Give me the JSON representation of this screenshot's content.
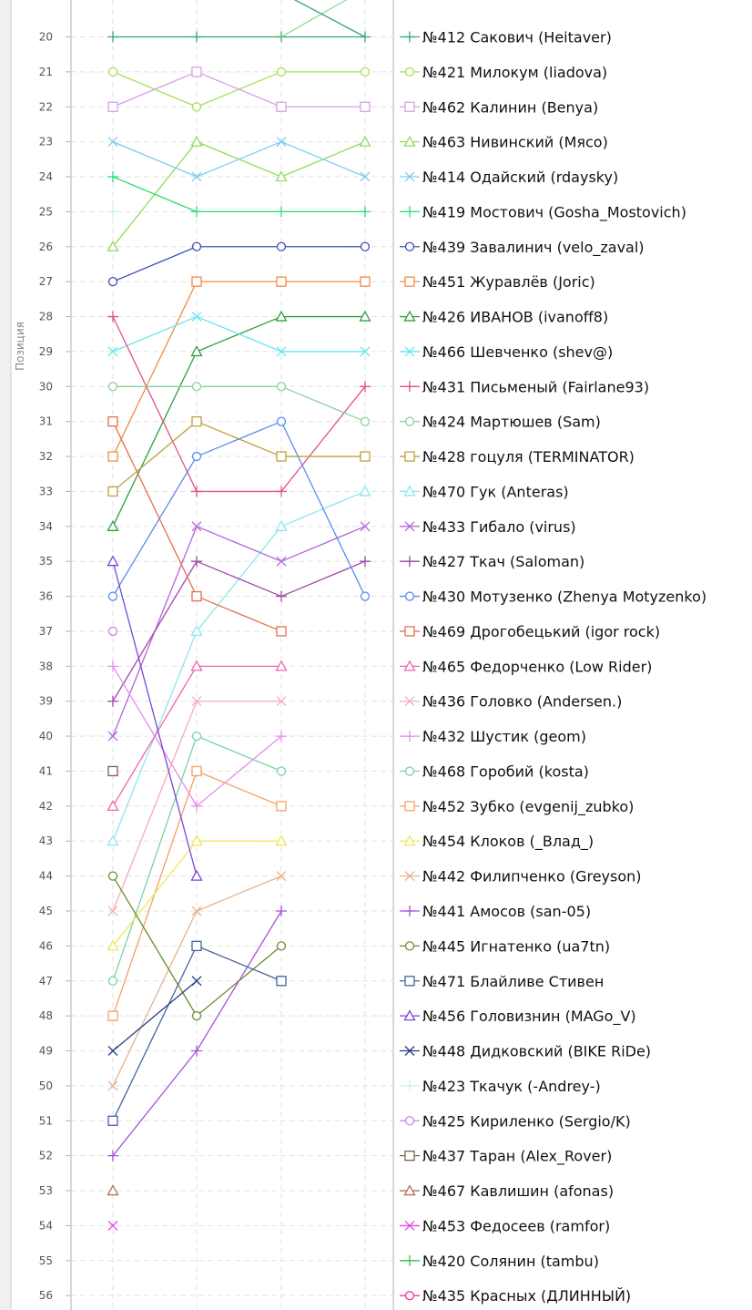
{
  "chart_data": {
    "type": "line",
    "ylabel": "Позиция",
    "ylim": [
      19,
      56
    ],
    "y_inverted": true,
    "y_ticks": [
      20,
      21,
      22,
      23,
      24,
      25,
      26,
      27,
      28,
      29,
      30,
      31,
      32,
      33,
      34,
      35,
      36,
      37,
      38,
      39,
      40,
      41,
      42,
      43,
      44,
      45,
      46,
      47,
      48,
      49,
      50,
      51,
      52,
      53,
      54,
      55,
      56
    ],
    "x_points": 4,
    "grid": true,
    "legend_position": "right",
    "series": [
      {
        "name": "№412 Сакович (Heitaver)",
        "color": "#3aa374",
        "marker": "plus",
        "values": [
          20,
          20,
          20,
          20
        ]
      },
      {
        "name": "№421 Милокум (liadova)",
        "color": "#a6e05a",
        "marker": "circle",
        "values": [
          21,
          22,
          21,
          21
        ]
      },
      {
        "name": "№462 Калинин (Benya)",
        "color": "#d9a0e6",
        "marker": "square",
        "values": [
          22,
          21,
          22,
          22
        ]
      },
      {
        "name": "№463 Нивинский (Мясо)",
        "color": "#8fdc5b",
        "marker": "triangle",
        "values": [
          26,
          23,
          24,
          23
        ]
      },
      {
        "name": "№414 Одайский (rdaysky)",
        "color": "#7fd0ee",
        "marker": "x",
        "values": [
          23,
          24,
          23,
          24
        ]
      },
      {
        "name": "№419 Мостович (Gosha_Mostovich)",
        "color": "#28dc6e",
        "marker": "plus",
        "values": [
          24,
          25,
          25,
          25
        ]
      },
      {
        "name": "№439 Завалинич (velo_zaval)",
        "color": "#3c50b4",
        "marker": "circle",
        "values": [
          27,
          26,
          26,
          26
        ]
      },
      {
        "name": "№451 Журавлёв (Joric)",
        "color": "#f08c46",
        "marker": "square",
        "values": [
          32,
          27,
          27,
          27
        ]
      },
      {
        "name": "№426 ИВАНОВ (ivanoff8)",
        "color": "#32a03c",
        "marker": "triangle",
        "values": [
          34,
          29,
          28,
          28
        ]
      },
      {
        "name": "№466 Шевченко (shev@)",
        "color": "#64e6f0",
        "marker": "x",
        "values": [
          29,
          28,
          29,
          29
        ]
      },
      {
        "name": "№431 Письменый (Fairlane93)",
        "color": "#e6508c",
        "marker": "plus",
        "values": [
          28,
          33,
          33,
          30
        ]
      },
      {
        "name": "№424 Мартюшев (Sam)",
        "color": "#8cd2a0",
        "marker": "circle",
        "values": [
          30,
          30,
          30,
          31
        ]
      },
      {
        "name": "№428 гоцуля (TERMINATOR)",
        "color": "#bea03c",
        "marker": "square",
        "values": [
          33,
          31,
          32,
          32
        ]
      },
      {
        "name": "№470 Гук (Anteras)",
        "color": "#8ce6f0",
        "marker": "triangle",
        "values": [
          43,
          37,
          34,
          33
        ]
      },
      {
        "name": "№433 Гибало (virus)",
        "color": "#b464dc",
        "marker": "x",
        "values": [
          40,
          34,
          35,
          34
        ]
      },
      {
        "name": "№427 Ткач (Saloman)",
        "color": "#a046aa",
        "marker": "plus",
        "values": [
          39,
          35,
          36,
          35
        ]
      },
      {
        "name": "№430 Мотузенко (Zhenya Motyzenko)",
        "color": "#5a8cf0",
        "marker": "circle",
        "values": [
          36,
          32,
          31,
          36
        ]
      },
      {
        "name": "№469 Дрогобецький (igor rock)",
        "color": "#e66e50",
        "marker": "square",
        "values": [
          31,
          36,
          37,
          null
        ]
      },
      {
        "name": "№465 Федорченко (Low Rider)",
        "color": "#f064aa",
        "marker": "triangle",
        "values": [
          42,
          38,
          38,
          null
        ]
      },
      {
        "name": "№436 Головко (Andersen.)",
        "color": "#f5aabe",
        "marker": "x",
        "values": [
          45,
          39,
          39,
          null
        ]
      },
      {
        "name": "№432 Шустик (geom)",
        "color": "#e68cf0",
        "marker": "plus",
        "values": [
          38,
          42,
          40,
          null
        ]
      },
      {
        "name": "№468 Горобий (kosta)",
        "color": "#78d2aa",
        "marker": "circle",
        "values": [
          47,
          40,
          41,
          null
        ]
      },
      {
        "name": "№452 Зубко (evgenij_zubko)",
        "color": "#f5a064",
        "marker": "square",
        "values": [
          48,
          41,
          42,
          null
        ]
      },
      {
        "name": "№454 Клоков (_Влад_)",
        "color": "#f0e650",
        "marker": "triangle",
        "values": [
          46,
          43,
          43,
          null
        ]
      },
      {
        "name": "№442 Филипченко (Greyson)",
        "color": "#e6b48c",
        "marker": "x",
        "values": [
          50,
          45,
          44,
          null
        ]
      },
      {
        "name": "№441 Амосов (san-05)",
        "color": "#aa50dc",
        "marker": "plus",
        "values": [
          52,
          49,
          45,
          null
        ]
      },
      {
        "name": "№445 Игнатенко (ua7tn)",
        "color": "#6e8c32",
        "marker": "circle",
        "values": [
          44,
          48,
          46,
          null
        ]
      },
      {
        "name": "№471 Блайливе Стивен",
        "color": "#46649c",
        "marker": "square",
        "values": [
          51,
          46,
          47,
          null
        ]
      },
      {
        "name": "№456 Головизнин (MAGo_V)",
        "color": "#7846dc",
        "marker": "triangle",
        "values": [
          35,
          44,
          null,
          null
        ]
      },
      {
        "name": "№448 Дидковский (BIKE RiDe)",
        "color": "#283c8c",
        "marker": "x",
        "values": [
          49,
          47,
          null,
          null
        ]
      },
      {
        "name": "№423 Ткачук (-Andrey-)",
        "color": "#c8f0f0",
        "marker": "plus",
        "values": [
          25,
          null,
          null,
          null
        ]
      },
      {
        "name": "№425 Кириленко (Sergio/K)",
        "color": "#c882e6",
        "marker": "circle",
        "values": [
          37,
          null,
          null,
          null
        ]
      },
      {
        "name": "№437 Таран (Alex_Rover)",
        "color": "#786450",
        "marker": "square",
        "values": [
          41,
          null,
          null,
          null
        ]
      },
      {
        "name": "№467 Кавлишин (afonas)",
        "color": "#b46e5a",
        "marker": "triangle",
        "values": [
          53,
          null,
          null,
          null
        ]
      },
      {
        "name": "№453 Федосеев (ramfor)",
        "color": "#e646e6",
        "marker": "x",
        "values": [
          54,
          null,
          null,
          null
        ]
      },
      {
        "name": "№420 Солянин (tambu)",
        "color": "#32c83c",
        "marker": "plus",
        "values": [
          null,
          null,
          null,
          null
        ]
      },
      {
        "name": "№435 Красных (ДЛИННЫЙ)",
        "color": "#f03c96",
        "marker": "circle",
        "values": [
          null,
          null,
          null,
          null
        ]
      }
    ]
  }
}
